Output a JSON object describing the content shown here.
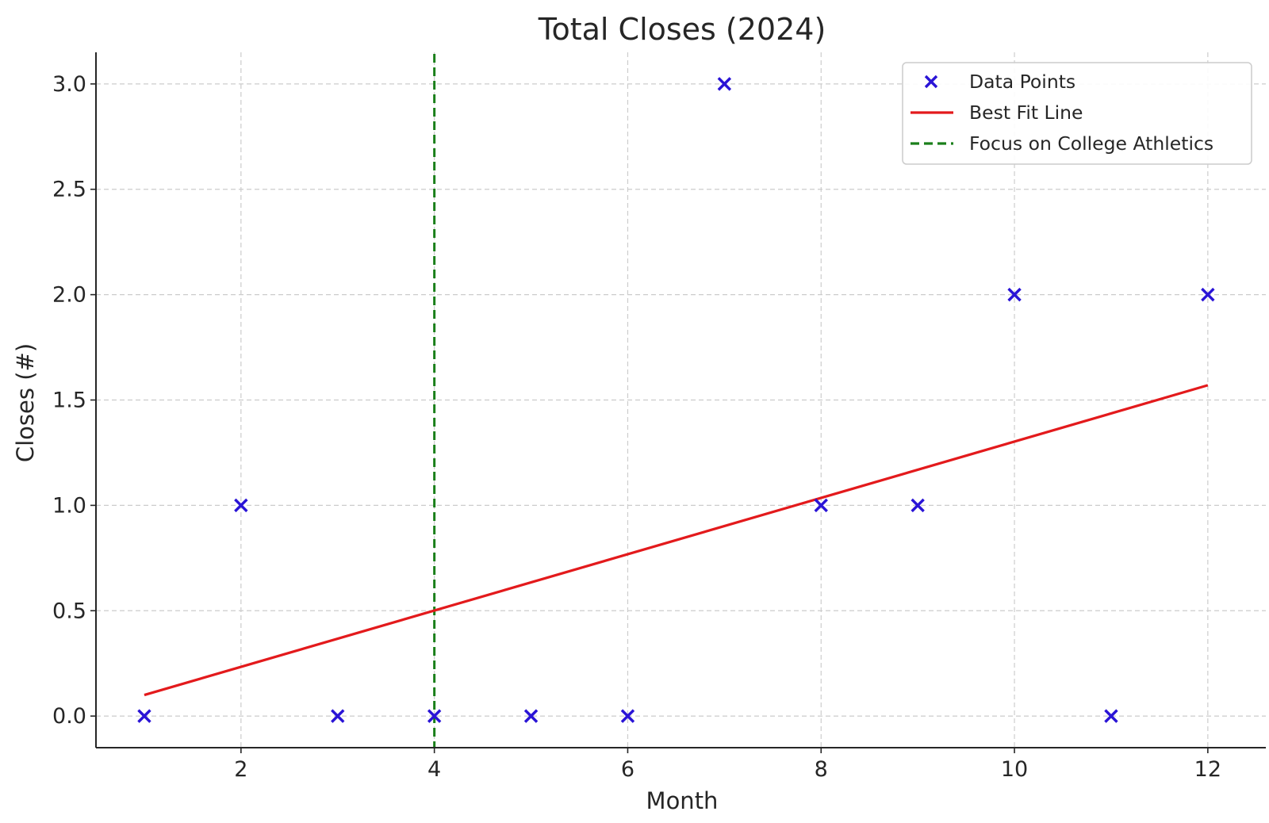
{
  "chart_data": {
    "type": "scatter",
    "title": "Total Closes (2024)",
    "xlabel": "Month",
    "ylabel": "Closes (#)",
    "xlim": [
      0.5,
      12.6
    ],
    "ylim": [
      -0.15,
      3.15
    ],
    "xticks": [
      2,
      4,
      6,
      8,
      10,
      12
    ],
    "yticks": [
      0.0,
      0.5,
      1.0,
      1.5,
      2.0,
      2.5,
      3.0
    ],
    "xtick_labels": [
      "2",
      "4",
      "6",
      "8",
      "10",
      "12"
    ],
    "ytick_labels": [
      "0.0",
      "0.5",
      "1.0",
      "1.5",
      "2.0",
      "2.5",
      "3.0"
    ],
    "grid": true,
    "legend_position": "top-right",
    "series": [
      {
        "name": "Data Points",
        "kind": "scatter",
        "marker": "x",
        "color": "#2a14d6",
        "x": [
          1,
          2,
          3,
          4,
          5,
          6,
          7,
          8,
          9,
          10,
          11,
          12
        ],
        "y": [
          0,
          1,
          0,
          0,
          0,
          0,
          3,
          1,
          1,
          2,
          0,
          2
        ]
      },
      {
        "name": "Best Fit Line",
        "kind": "line",
        "color": "#e31a1c",
        "x": [
          1,
          12
        ],
        "y": [
          0.1,
          1.57
        ]
      },
      {
        "name": "Focus on College Athletics",
        "kind": "vline",
        "style": "dashed",
        "color": "#1a7f1a",
        "x": 4
      }
    ]
  }
}
